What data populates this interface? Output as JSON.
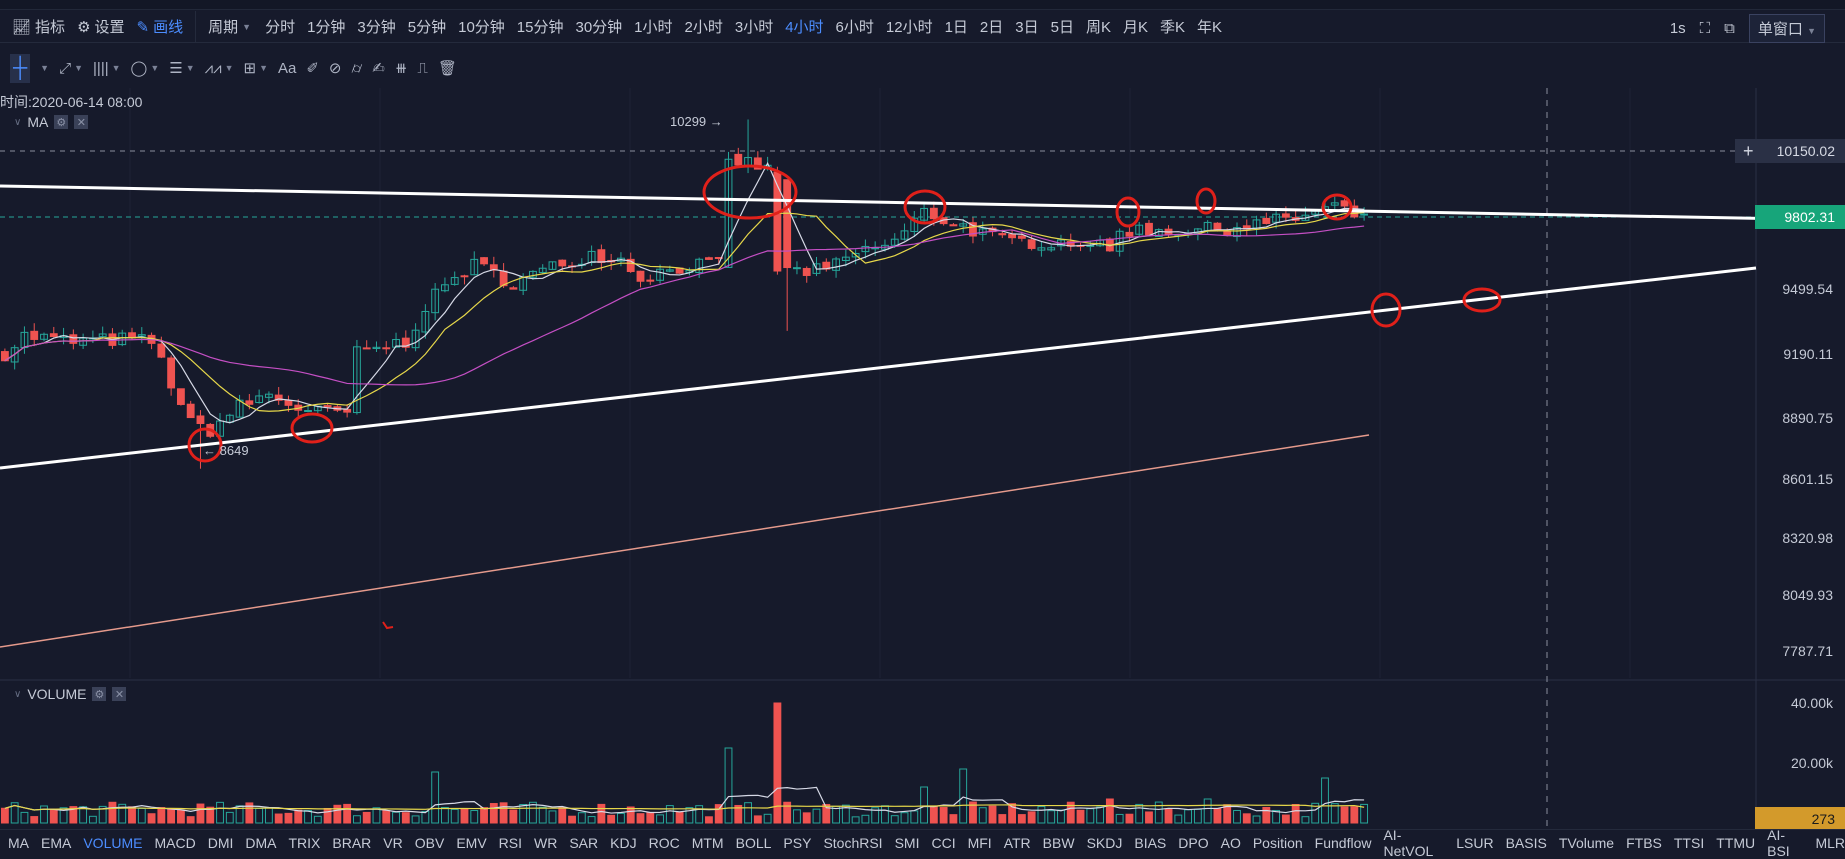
{
  "toolbar": {
    "indicator": "指标",
    "settings": "设置",
    "draw": "画线",
    "period": "周期",
    "periods": [
      "分时",
      "1分钟",
      "3分钟",
      "5分钟",
      "10分钟",
      "15分钟",
      "30分钟",
      "1小时",
      "2小时",
      "3小时",
      "4小时",
      "6小时",
      "12小时",
      "1日",
      "2日",
      "3日",
      "5日",
      "周K",
      "月K",
      "季K",
      "年K"
    ],
    "active_period": "4小时",
    "refresh": "1s",
    "window_mode": "单窗口"
  },
  "drawing_tools": {
    "text_tool": "Aa"
  },
  "main_pane": {
    "time_label": "时间:2020-06-14 08:00",
    "indicator": "MA",
    "high_label": "10299",
    "low_label": "8649"
  },
  "volume_pane": {
    "indicator": "VOLUME"
  },
  "price_axis": [
    "10150.02",
    "9499.54",
    "9190.11",
    "8890.75",
    "8601.15",
    "8320.98",
    "8049.93",
    "7787.71"
  ],
  "crosshair_price": "10150.02",
  "last_price": "9802.31",
  "volume_axis": [
    "40.00k",
    "20.00k"
  ],
  "last_volume": "273",
  "indicators": [
    "MA",
    "EMA",
    "VOLUME",
    "MACD",
    "DMI",
    "DMA",
    "TRIX",
    "BRAR",
    "VR",
    "OBV",
    "EMV",
    "RSI",
    "WR",
    "SAR",
    "KDJ",
    "ROC",
    "MTM",
    "BOLL",
    "PSY",
    "StochRSI",
    "SMI",
    "CCI",
    "MFI",
    "ATR",
    "BBW",
    "SKDJ",
    "BIAS",
    "DPO",
    "AO",
    "Position",
    "Fundflow",
    "AI-NetVOL",
    "LSUR",
    "BASIS",
    "TVolume",
    "FTBS",
    "TTSI",
    "TTMU",
    "AI-BSI",
    "MLR"
  ],
  "active_indicator": "VOLUME",
  "colors": {
    "up": "#26a69a",
    "down": "#ef5350",
    "accent": "#4c8dff",
    "last_price_bg": "#17a57a",
    "volume_tag_bg": "#d39a2b"
  },
  "chart_data": {
    "type": "candlestick",
    "candles": 140,
    "price_path": [
      [
        0,
        9194
      ],
      [
        2,
        9277
      ],
      [
        7,
        9250
      ],
      [
        12,
        9260
      ],
      [
        15,
        9250
      ],
      [
        19,
        8860
      ],
      [
        21,
        8833
      ],
      [
        24,
        8944
      ],
      [
        27,
        9000
      ],
      [
        31,
        8916
      ],
      [
        35,
        8916
      ],
      [
        36,
        9194
      ],
      [
        41,
        9250
      ],
      [
        43,
        9416
      ],
      [
        46,
        9555
      ],
      [
        48,
        9611
      ],
      [
        52,
        9527
      ],
      [
        55,
        9583
      ],
      [
        60,
        9666
      ],
      [
        63,
        9639
      ],
      [
        65,
        9555
      ],
      [
        70,
        9611
      ],
      [
        73,
        9611
      ],
      [
        74,
        10111
      ],
      [
        77,
        10083
      ],
      [
        79,
        10028
      ],
      [
        80,
        9583
      ],
      [
        84,
        9583
      ],
      [
        87,
        9666
      ],
      [
        91,
        9722
      ],
      [
        94,
        9861
      ],
      [
        99,
        9778
      ],
      [
        102,
        9722
      ],
      [
        106,
        9722
      ],
      [
        111,
        9722
      ],
      [
        113,
        9666
      ],
      [
        114,
        9778
      ],
      [
        118,
        9778
      ],
      [
        123,
        9778
      ],
      [
        128,
        9805
      ],
      [
        132,
        9833
      ],
      [
        136,
        9889
      ],
      [
        139,
        9820
      ]
    ],
    "price_range": [
      7787.71,
      10150.02
    ],
    "volume_spikes": [
      [
        74,
        25000
      ],
      [
        79,
        40000
      ],
      [
        44,
        17000
      ],
      [
        94,
        12000
      ],
      [
        98,
        18000
      ],
      [
        113,
        8000
      ],
      [
        123,
        8000
      ],
      [
        135,
        15000
      ]
    ],
    "volume_range": [
      0,
      40000
    ],
    "high": 10299,
    "low": 8649
  }
}
